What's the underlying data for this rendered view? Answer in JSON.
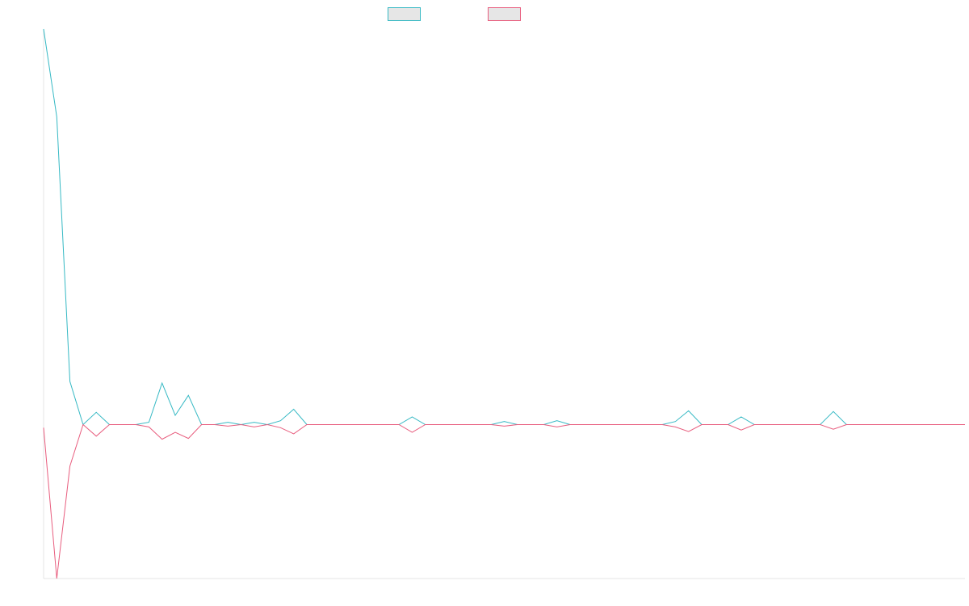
{
  "chart_data": {
    "type": "line",
    "title": "",
    "xlabel": "",
    "ylabel": "",
    "x_range": [
      0,
      70
    ],
    "ylim": [
      -10,
      25.7
    ],
    "grid": false,
    "legend_position": "top",
    "series": [
      {
        "color": "#36b9c4",
        "fill": "#e6e6e6",
        "values": [
          25.7,
          20,
          2.8,
          0,
          0.8,
          0,
          0,
          0,
          0.15,
          2.7,
          0.6,
          1.9,
          0,
          0,
          0.15,
          0,
          0.15,
          0,
          0.25,
          1,
          0,
          0,
          0,
          0,
          0,
          0,
          0,
          0,
          0.5,
          0,
          0,
          0,
          0,
          0,
          0,
          0.2,
          0,
          0,
          0,
          0.25,
          0,
          0,
          0,
          0,
          0,
          0,
          0,
          0,
          0.2,
          0.9,
          0,
          0,
          0,
          0.5,
          0,
          0,
          0,
          0,
          0,
          0,
          0.85,
          0,
          0,
          0,
          0,
          0,
          0,
          0,
          0,
          0,
          0
        ]
      },
      {
        "color": "#e85d7e",
        "fill": "#e6e6e6",
        "values": [
          -0.2,
          -10,
          -2.7,
          0,
          -0.75,
          0,
          0,
          0,
          -0.15,
          -0.95,
          -0.5,
          -0.9,
          0,
          0,
          -0.1,
          0,
          -0.15,
          0,
          -0.2,
          -0.6,
          0,
          0,
          0,
          0,
          0,
          0,
          0,
          0,
          -0.5,
          0,
          0,
          0,
          0,
          0,
          0,
          -0.1,
          0,
          0,
          0,
          -0.15,
          0,
          0,
          0,
          0,
          0,
          0,
          0,
          0,
          -0.15,
          -0.45,
          0,
          0,
          0,
          -0.35,
          0,
          0,
          0,
          0,
          0,
          0,
          -0.3,
          0,
          0,
          0,
          0,
          0,
          0,
          0,
          0,
          0,
          0
        ]
      }
    ]
  }
}
